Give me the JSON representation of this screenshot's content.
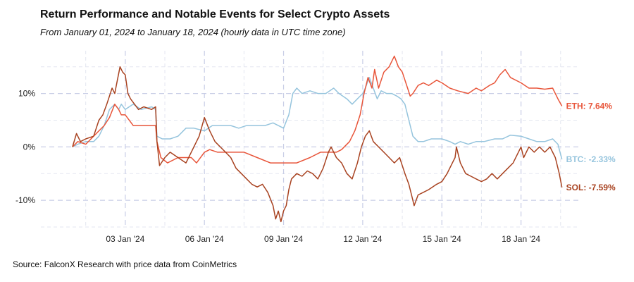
{
  "chart_data": {
    "type": "line",
    "title": "Return Performance and Notable Events for Select Crypto Assets",
    "subtitle": "From January 01, 2024 to January 18, 2024 (hourly data in UTC time zone)",
    "source": "Source: FalconX Research with price data from CoinMetrics",
    "xlabel": "",
    "ylabel": "",
    "x_unit": "days since Jan 01, 2024 00:00 UTC",
    "xlim": [
      -1.2,
      19.2
    ],
    "ylim": [
      -15,
      18
    ],
    "grid": true,
    "x_ticks": [
      {
        "x": 2,
        "label": "03 Jan '24"
      },
      {
        "x": 5,
        "label": "06 Jan '24"
      },
      {
        "x": 8,
        "label": "09 Jan '24"
      },
      {
        "x": 11,
        "label": "12 Jan '24"
      },
      {
        "x": 14,
        "label": "15 Jan '24"
      },
      {
        "x": 17,
        "label": "18 Jan '24"
      }
    ],
    "y_ticks": [
      {
        "y": 10,
        "label": "10%"
      },
      {
        "y": 0,
        "label": "0%"
      },
      {
        "y": -10,
        "label": "-10%"
      }
    ],
    "series": [
      {
        "name": "ETH",
        "color": "#e8553a",
        "end_label": "ETH: 7.64%",
        "final": 7.64,
        "points": [
          [
            0,
            0
          ],
          [
            0.2,
            1
          ],
          [
            0.5,
            0.5
          ],
          [
            0.8,
            2
          ],
          [
            1,
            3
          ],
          [
            1.2,
            4
          ],
          [
            1.4,
            5.5
          ],
          [
            1.6,
            8
          ],
          [
            1.75,
            7
          ],
          [
            1.85,
            6
          ],
          [
            2,
            6
          ],
          [
            2.3,
            4
          ],
          [
            2.6,
            4
          ],
          [
            3,
            4
          ],
          [
            3.15,
            4
          ],
          [
            3.2,
            1
          ],
          [
            3.35,
            -2
          ],
          [
            3.6,
            -3
          ],
          [
            4,
            -2
          ],
          [
            4.5,
            -2
          ],
          [
            4.7,
            -3
          ],
          [
            5,
            -1
          ],
          [
            5.2,
            -0.5
          ],
          [
            5.5,
            -1
          ],
          [
            6,
            -1
          ],
          [
            6.5,
            -1
          ],
          [
            7,
            -2
          ],
          [
            7.5,
            -3
          ],
          [
            8,
            -3
          ],
          [
            8.5,
            -3
          ],
          [
            9,
            -2
          ],
          [
            9.4,
            -1
          ],
          [
            9.6,
            -1
          ],
          [
            10,
            -1
          ],
          [
            10.2,
            -0.5
          ],
          [
            10.5,
            1
          ],
          [
            10.7,
            3
          ],
          [
            10.9,
            6
          ],
          [
            11.05,
            10
          ],
          [
            11.2,
            13
          ],
          [
            11.35,
            11
          ],
          [
            11.45,
            14.5
          ],
          [
            11.6,
            11
          ],
          [
            11.8,
            14
          ],
          [
            12,
            15
          ],
          [
            12.2,
            17
          ],
          [
            12.35,
            15
          ],
          [
            12.5,
            14
          ],
          [
            12.7,
            11
          ],
          [
            12.8,
            9.5
          ],
          [
            12.9,
            10
          ],
          [
            13.1,
            11.5
          ],
          [
            13.3,
            12
          ],
          [
            13.5,
            11.5
          ],
          [
            13.8,
            12.5
          ],
          [
            14,
            12
          ],
          [
            14.3,
            11
          ],
          [
            14.6,
            10.5
          ],
          [
            15,
            10
          ],
          [
            15.3,
            11
          ],
          [
            15.5,
            10.5
          ],
          [
            15.8,
            11.5
          ],
          [
            16,
            12
          ],
          [
            16.2,
            13.5
          ],
          [
            16.4,
            14.5
          ],
          [
            16.6,
            13
          ],
          [
            17,
            12
          ],
          [
            17.3,
            11
          ],
          [
            17.6,
            11
          ],
          [
            17.9,
            10.8
          ],
          [
            18.2,
            11
          ],
          [
            18.4,
            9
          ],
          [
            18.55,
            7.64
          ]
        ]
      },
      {
        "name": "BTC",
        "color": "#95c4dd",
        "end_label": "BTC: -2.33%",
        "final": -2.33,
        "points": [
          [
            0,
            0
          ],
          [
            0.2,
            0.5
          ],
          [
            0.5,
            1
          ],
          [
            0.8,
            1
          ],
          [
            1,
            2
          ],
          [
            1.2,
            4
          ],
          [
            1.4,
            7
          ],
          [
            1.6,
            8
          ],
          [
            1.75,
            7
          ],
          [
            1.85,
            8
          ],
          [
            2,
            7
          ],
          [
            2.3,
            8
          ],
          [
            2.6,
            7
          ],
          [
            3,
            7.5
          ],
          [
            3.15,
            7
          ],
          [
            3.2,
            2
          ],
          [
            3.4,
            1.5
          ],
          [
            3.7,
            1.5
          ],
          [
            4,
            2
          ],
          [
            4.3,
            3.5
          ],
          [
            4.6,
            3.5
          ],
          [
            5,
            3
          ],
          [
            5.3,
            4
          ],
          [
            5.6,
            4
          ],
          [
            6,
            4
          ],
          [
            6.3,
            3.5
          ],
          [
            6.6,
            4
          ],
          [
            7,
            4
          ],
          [
            7.3,
            4
          ],
          [
            7.6,
            4.5
          ],
          [
            8,
            3.5
          ],
          [
            8.2,
            6
          ],
          [
            8.35,
            10
          ],
          [
            8.5,
            11
          ],
          [
            8.7,
            10
          ],
          [
            9,
            10.5
          ],
          [
            9.3,
            10
          ],
          [
            9.6,
            10
          ],
          [
            9.9,
            11
          ],
          [
            10.1,
            10
          ],
          [
            10.4,
            9
          ],
          [
            10.6,
            8
          ],
          [
            10.8,
            9
          ],
          [
            11,
            10
          ],
          [
            11.1,
            11
          ],
          [
            11.25,
            13
          ],
          [
            11.4,
            11
          ],
          [
            11.55,
            9
          ],
          [
            11.7,
            10.5
          ],
          [
            11.9,
            10
          ],
          [
            12.1,
            10
          ],
          [
            12.3,
            9.5
          ],
          [
            12.45,
            9
          ],
          [
            12.6,
            8
          ],
          [
            12.8,
            4
          ],
          [
            12.9,
            2
          ],
          [
            13.1,
            1
          ],
          [
            13.3,
            1
          ],
          [
            13.6,
            1.5
          ],
          [
            14,
            1.5
          ],
          [
            14.3,
            1
          ],
          [
            14.5,
            0.5
          ],
          [
            14.7,
            1
          ],
          [
            15,
            0.5
          ],
          [
            15.3,
            1
          ],
          [
            15.6,
            1
          ],
          [
            16,
            1.5
          ],
          [
            16.3,
            1.5
          ],
          [
            16.6,
            2.2
          ],
          [
            17,
            2
          ],
          [
            17.3,
            1.5
          ],
          [
            17.6,
            1
          ],
          [
            17.9,
            1
          ],
          [
            18.2,
            1.5
          ],
          [
            18.4,
            0.5
          ],
          [
            18.55,
            -2.33
          ]
        ]
      },
      {
        "name": "SOL",
        "color": "#a84220",
        "end_label": "SOL: -7.59%",
        "final": -7.59,
        "points": [
          [
            0,
            0
          ],
          [
            0.15,
            2.5
          ],
          [
            0.3,
            1
          ],
          [
            0.5,
            1.5
          ],
          [
            0.8,
            2
          ],
          [
            1,
            5
          ],
          [
            1.15,
            6
          ],
          [
            1.3,
            8
          ],
          [
            1.5,
            11
          ],
          [
            1.6,
            10
          ],
          [
            1.7,
            12.5
          ],
          [
            1.8,
            15
          ],
          [
            1.9,
            14
          ],
          [
            2,
            13.5
          ],
          [
            2.1,
            10
          ],
          [
            2.2,
            9
          ],
          [
            2.35,
            8
          ],
          [
            2.5,
            7
          ],
          [
            2.7,
            7.5
          ],
          [
            3,
            7
          ],
          [
            3.15,
            7.5
          ],
          [
            3.2,
            1
          ],
          [
            3.3,
            -3.5
          ],
          [
            3.5,
            -2
          ],
          [
            3.7,
            -1
          ],
          [
            4,
            -2
          ],
          [
            4.3,
            -3
          ],
          [
            4.5,
            -1
          ],
          [
            4.8,
            2
          ],
          [
            5,
            5.5
          ],
          [
            5.2,
            3
          ],
          [
            5.4,
            1
          ],
          [
            5.6,
            0
          ],
          [
            5.8,
            -1
          ],
          [
            6,
            -2
          ],
          [
            6.2,
            -4
          ],
          [
            6.4,
            -5
          ],
          [
            6.6,
            -6
          ],
          [
            6.8,
            -7
          ],
          [
            7,
            -7.5
          ],
          [
            7.2,
            -7
          ],
          [
            7.4,
            -8.5
          ],
          [
            7.6,
            -11
          ],
          [
            7.7,
            -13.5
          ],
          [
            7.8,
            -12
          ],
          [
            7.9,
            -14
          ],
          [
            8,
            -12
          ],
          [
            8.1,
            -11
          ],
          [
            8.2,
            -8
          ],
          [
            8.3,
            -6
          ],
          [
            8.5,
            -5
          ],
          [
            8.7,
            -5.5
          ],
          [
            8.9,
            -4.5
          ],
          [
            9.1,
            -5
          ],
          [
            9.3,
            -6
          ],
          [
            9.5,
            -4
          ],
          [
            9.7,
            -1
          ],
          [
            9.8,
            0
          ],
          [
            10,
            -2
          ],
          [
            10.2,
            -3
          ],
          [
            10.4,
            -5
          ],
          [
            10.6,
            -6
          ],
          [
            10.8,
            -3
          ],
          [
            10.95,
            0
          ],
          [
            11.1,
            2
          ],
          [
            11.25,
            3
          ],
          [
            11.4,
            1
          ],
          [
            11.6,
            0
          ],
          [
            11.8,
            -1
          ],
          [
            12,
            -2
          ],
          [
            12.2,
            -3
          ],
          [
            12.4,
            -2
          ],
          [
            12.6,
            -5
          ],
          [
            12.75,
            -7
          ],
          [
            12.85,
            -9
          ],
          [
            12.95,
            -11
          ],
          [
            13.1,
            -9
          ],
          [
            13.3,
            -8.5
          ],
          [
            13.5,
            -8
          ],
          [
            13.8,
            -7
          ],
          [
            14,
            -6.5
          ],
          [
            14.2,
            -5
          ],
          [
            14.4,
            -3
          ],
          [
            14.5,
            -2
          ],
          [
            14.55,
            0
          ],
          [
            14.7,
            -3
          ],
          [
            14.9,
            -5
          ],
          [
            15.1,
            -5.5
          ],
          [
            15.3,
            -6
          ],
          [
            15.5,
            -6.5
          ],
          [
            15.7,
            -6
          ],
          [
            15.9,
            -5
          ],
          [
            16.1,
            -6
          ],
          [
            16.3,
            -5
          ],
          [
            16.5,
            -4
          ],
          [
            16.7,
            -3
          ],
          [
            16.9,
            -1
          ],
          [
            17,
            0
          ],
          [
            17.1,
            -2
          ],
          [
            17.3,
            0
          ],
          [
            17.5,
            -1
          ],
          [
            17.7,
            0
          ],
          [
            17.9,
            -1
          ],
          [
            18.1,
            0
          ],
          [
            18.3,
            -2
          ],
          [
            18.45,
            -5
          ],
          [
            18.55,
            -7.59
          ]
        ]
      }
    ]
  }
}
